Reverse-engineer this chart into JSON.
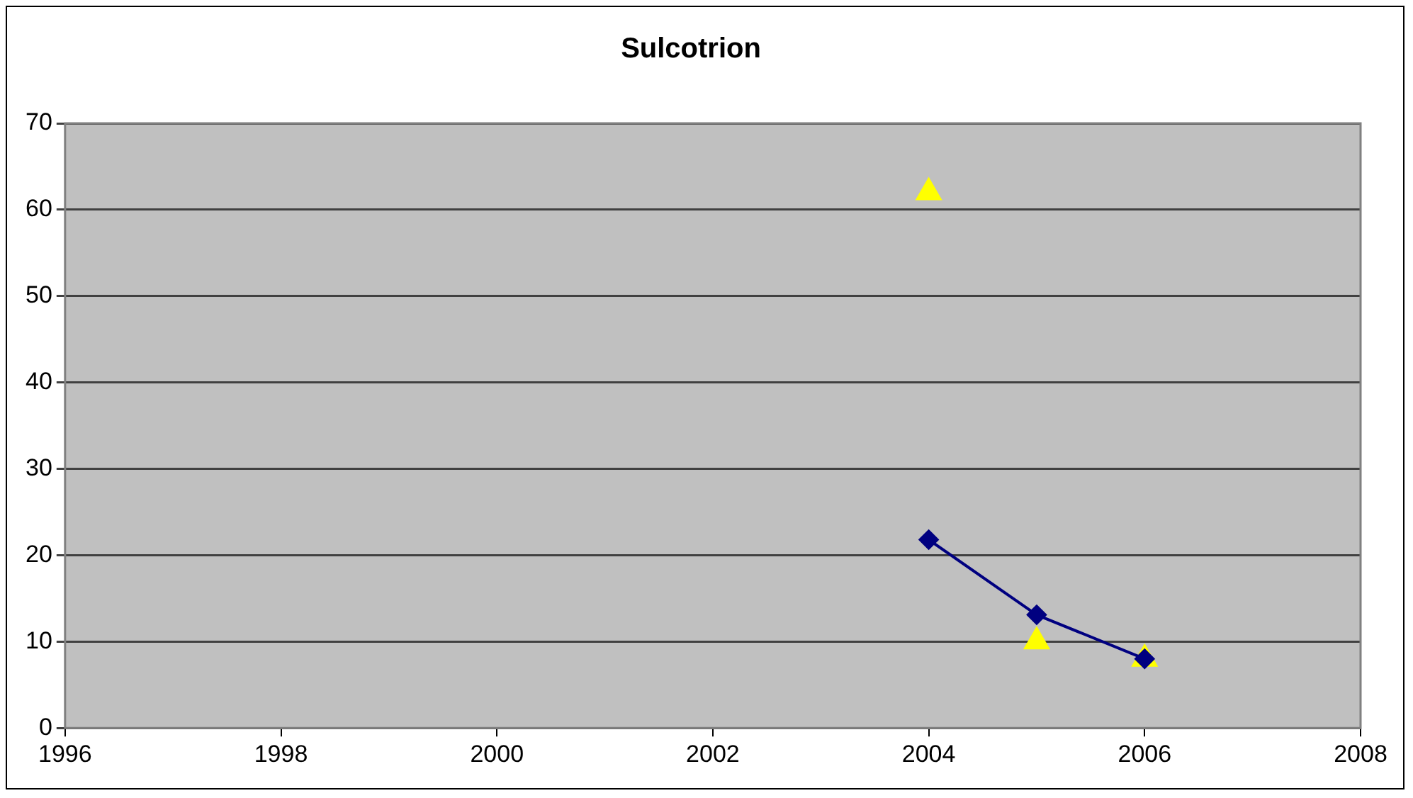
{
  "chart_data": {
    "type": "line",
    "title": "Sulcotrion",
    "xlim": [
      1996,
      2008
    ],
    "xticks": [
      1996,
      1998,
      2000,
      2002,
      2004,
      2006,
      2008
    ],
    "ylim": [
      0,
      70
    ],
    "yticks": [
      0,
      10,
      20,
      30,
      40,
      50,
      60,
      70
    ],
    "grid": "y",
    "legend": false,
    "series": [
      {
        "type": "line",
        "marker": "diamond",
        "color": "#000080",
        "x": [
          2004,
          2005,
          2006
        ],
        "values": [
          21.8,
          13.1,
          8
        ]
      },
      {
        "type": "scatter",
        "marker": "triangle",
        "color": "#ffff00",
        "x": [
          2004,
          2005,
          2006
        ],
        "values": [
          62,
          10,
          8
        ]
      }
    ]
  }
}
